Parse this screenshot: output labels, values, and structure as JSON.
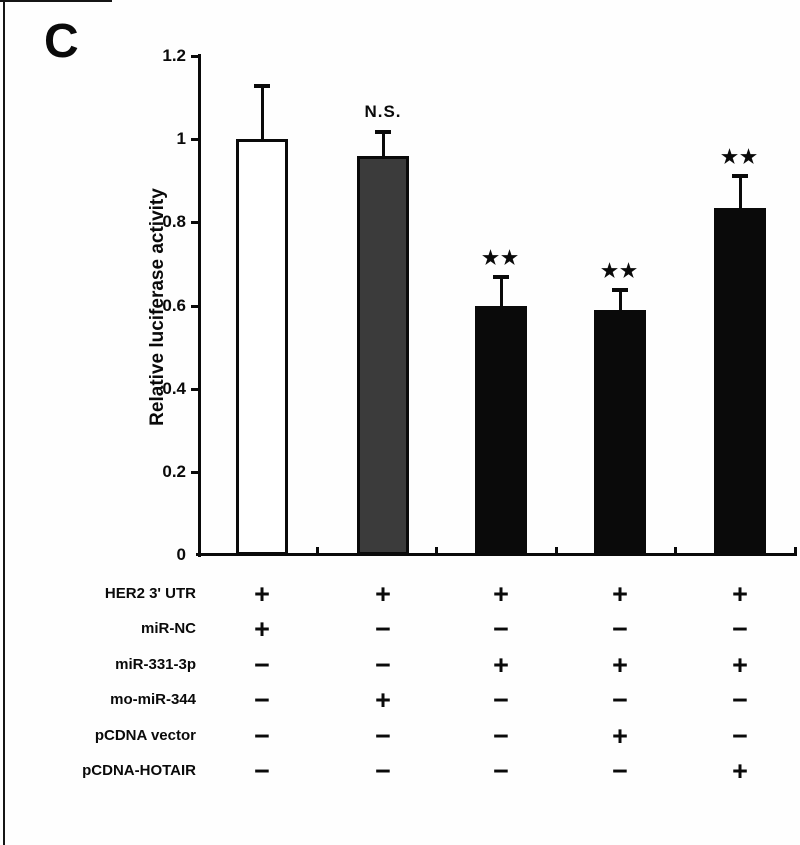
{
  "panel_label": "C",
  "colors": {
    "ink": "#0a0a0a",
    "white_bar": "#ffffff",
    "gray_bar": "#3b3b3b",
    "black_bar": "#0a0a0a",
    "background": "#fefefe"
  },
  "chart_data": {
    "type": "bar",
    "title": "",
    "xlabel": "",
    "ylabel": "Relative luciferase activity",
    "ylim": [
      0,
      1.2
    ],
    "ytick_values": [
      0,
      0.2,
      0.4,
      0.6,
      0.8,
      1,
      1.2
    ],
    "ytick_labels": [
      "0",
      "0.2",
      "0.4",
      "0.6",
      "0.8",
      "1",
      "1.2"
    ],
    "grid": false,
    "legend": false,
    "bars": [
      {
        "value": 1.0,
        "error_top": 1.13,
        "fill": "white",
        "annotation": ""
      },
      {
        "value": 0.96,
        "error_top": 1.02,
        "fill": "gray",
        "annotation": "N.S."
      },
      {
        "value": 0.6,
        "error_top": 0.67,
        "fill": "black",
        "annotation": "★★"
      },
      {
        "value": 0.59,
        "error_top": 0.64,
        "fill": "black",
        "annotation": "★★"
      },
      {
        "value": 0.835,
        "error_top": 0.915,
        "fill": "black",
        "annotation": "★★"
      }
    ],
    "condition_rows": [
      {
        "label": "HER2 3' UTR",
        "signs": [
          "+",
          "+",
          "+",
          "+",
          "+"
        ]
      },
      {
        "label": "miR-NC",
        "signs": [
          "+",
          "−",
          "−",
          "−",
          "−"
        ]
      },
      {
        "label": "miR-331-3p",
        "signs": [
          "−",
          "−",
          "+",
          "+",
          "+"
        ]
      },
      {
        "label": "mo-miR-344",
        "signs": [
          "−",
          "+",
          "−",
          "−",
          "−"
        ]
      },
      {
        "label": "pCDNA vector",
        "signs": [
          "−",
          "−",
          "−",
          "+",
          "−"
        ]
      },
      {
        "label": "pCDNA-HOTAIR",
        "signs": [
          "−",
          "−",
          "−",
          "−",
          "+"
        ]
      }
    ]
  }
}
